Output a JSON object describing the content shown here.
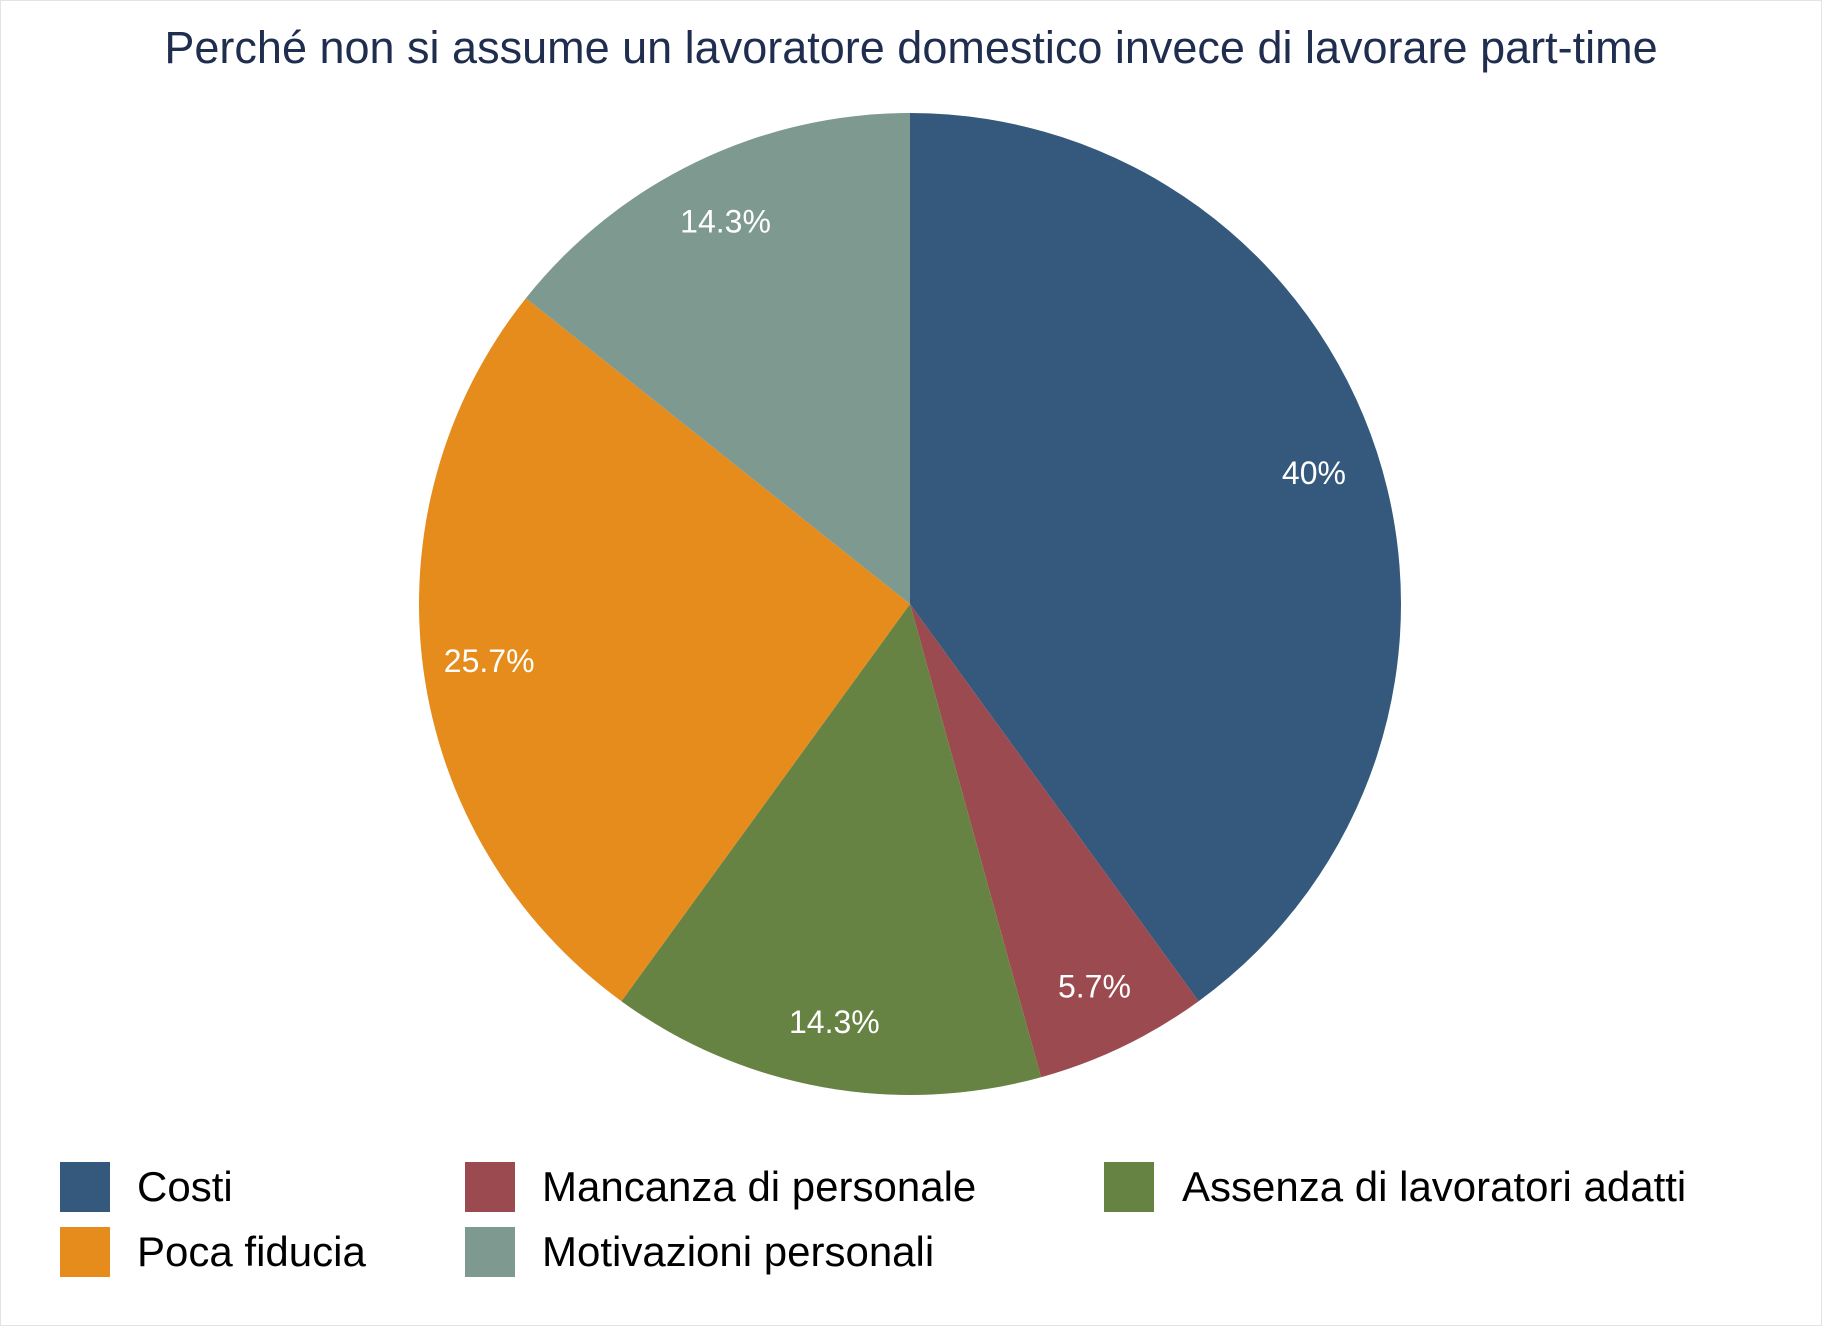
{
  "chart_data": {
    "type": "pie",
    "title": "Perché non si assume un lavoratore domestico invece di lavorare part-time",
    "slices": [
      {
        "name": "Costi",
        "value": 40.0,
        "label": "40%",
        "color": "#34597d"
      },
      {
        "name": "Mancanza di personale",
        "value": 5.7,
        "label": "5.7%",
        "color": "#9b4a50"
      },
      {
        "name": "Assenza di lavoratori adatti",
        "value": 14.3,
        "label": "14.3%",
        "color": "#678343"
      },
      {
        "name": "Poca fiducia",
        "value": 25.7,
        "label": "25.7%",
        "color": "#e58c1c"
      },
      {
        "name": "Motivazioni personali",
        "value": 14.3,
        "label": "14.3%",
        "color": "#7e9990"
      }
    ],
    "legend": [
      {
        "label": "Costi",
        "color": "#34597d"
      },
      {
        "label": "Mancanza di personale",
        "color": "#9b4a50"
      },
      {
        "label": "Assenza di lavoratori adatti",
        "color": "#678343"
      },
      {
        "label": "Poca fiducia",
        "color": "#e58c1c"
      },
      {
        "label": "Motivazioni personali",
        "color": "#7e9990"
      }
    ],
    "legend_position": "bottom",
    "label_color": "#ffffff"
  }
}
